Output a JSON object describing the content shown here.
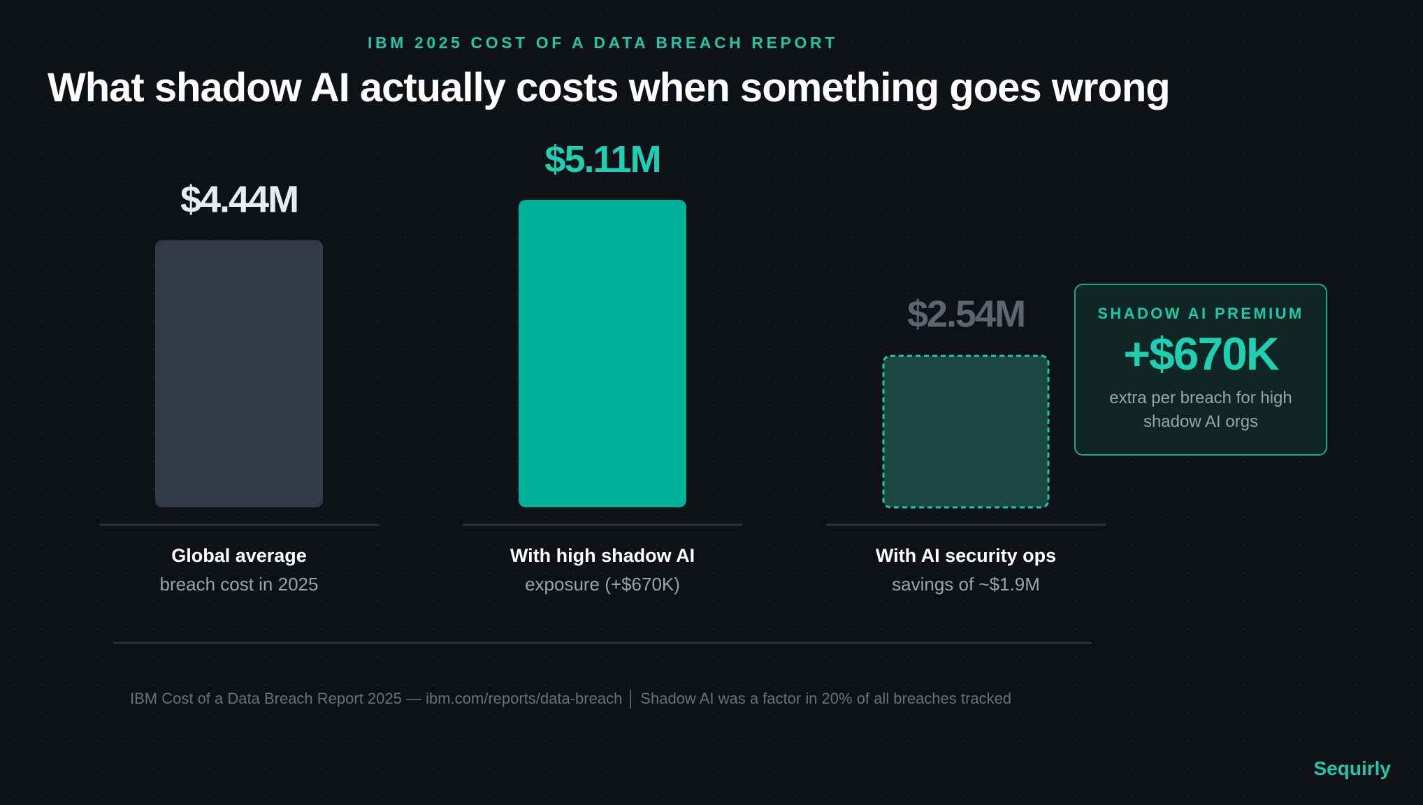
{
  "header": {
    "eyebrow": "IBM 2025 COST OF A DATA BREACH REPORT",
    "title": "What shadow AI actually costs when something goes wrong"
  },
  "chart_data": {
    "type": "bar",
    "title": "What shadow AI actually costs when something goes wrong",
    "unit": "$M",
    "ylim": [
      0,
      5.11
    ],
    "grid": false,
    "categories": [
      {
        "label": "Global average",
        "sublabel": "breach cost in 2025"
      },
      {
        "label": "With high shadow AI",
        "sublabel": "exposure (+$670K)"
      },
      {
        "label": "With AI security ops",
        "sublabel": "savings of ~$1.9M"
      }
    ],
    "values": [
      4.44,
      5.11,
      2.54
    ],
    "value_labels": [
      "$4.44M",
      "$5.11M",
      "$2.54M"
    ],
    "bar_styles": [
      "solid",
      "solid",
      "dashed"
    ],
    "bar_colors": [
      "#313a48",
      "#00b09b",
      "#1b4840"
    ],
    "label_colors": [
      "#e8ecf1",
      "#1fcfb2",
      "#5d6573"
    ]
  },
  "premium": {
    "eyebrow": "SHADOW AI PREMIUM",
    "value": "+$670K",
    "note": "extra per breach for high shadow AI orgs"
  },
  "footer": {
    "source": "IBM Cost of a Data Breach Report 2025 — ibm.com/reports/data-breach  │  Shadow AI was a factor in 20% of all breaches tracked",
    "brand": "Sequirly"
  }
}
